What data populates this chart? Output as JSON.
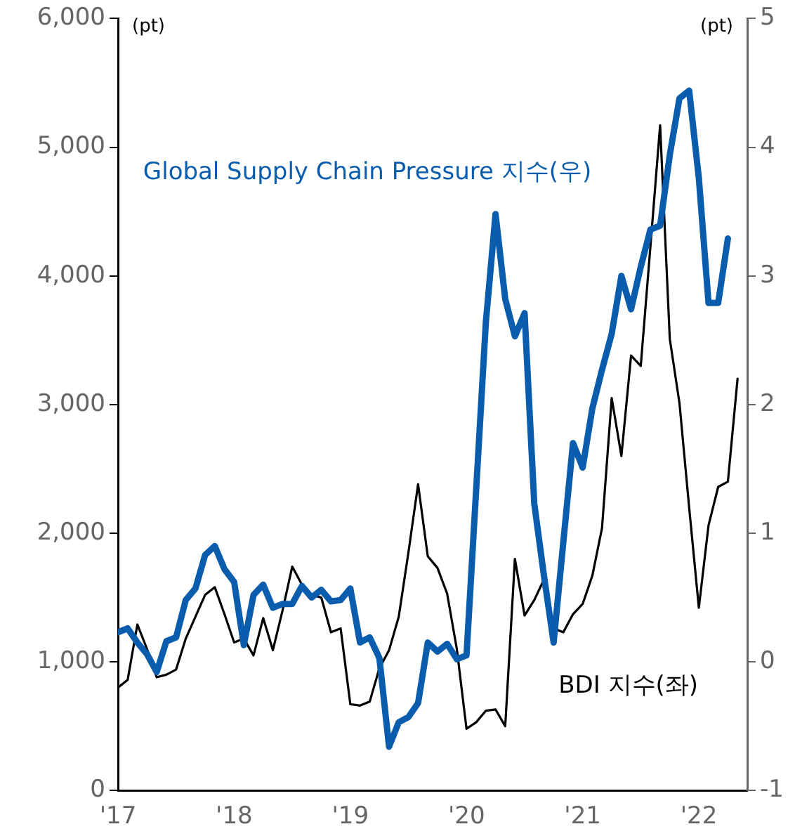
{
  "chart_data": {
    "type": "line",
    "ylabel": "(pt)",
    "y2label": "(pt)",
    "legend": false,
    "grid": false,
    "marker": "none",
    "x": [
      "2017-01",
      "2017-02",
      "2017-03",
      "2017-04",
      "2017-05",
      "2017-06",
      "2017-07",
      "2017-08",
      "2017-09",
      "2017-10",
      "2017-11",
      "2017-12",
      "2018-01",
      "2018-02",
      "2018-03",
      "2018-04",
      "2018-05",
      "2018-06",
      "2018-07",
      "2018-08",
      "2018-09",
      "2018-10",
      "2018-11",
      "2018-12",
      "2019-01",
      "2019-02",
      "2019-03",
      "2019-04",
      "2019-05",
      "2019-06",
      "2019-07",
      "2019-08",
      "2019-09",
      "2019-10",
      "2019-11",
      "2019-12",
      "2020-01",
      "2020-02",
      "2020-03",
      "2020-04",
      "2020-05",
      "2020-06",
      "2020-07",
      "2020-08",
      "2020-09",
      "2020-10",
      "2020-11",
      "2020-12",
      "2021-01",
      "2021-02",
      "2021-03",
      "2021-04",
      "2021-05",
      "2021-06",
      "2021-07",
      "2021-08",
      "2021-09",
      "2021-10",
      "2021-11",
      "2021-12",
      "2022-01",
      "2022-02",
      "2022-03",
      "2022-04",
      "2022-05"
    ],
    "xlim": [
      "2017-01",
      "2022-06"
    ],
    "xticks": [
      {
        "value": "2017-01",
        "label": "'17"
      },
      {
        "value": "2018-01",
        "label": "'18"
      },
      {
        "value": "2019-01",
        "label": "'19"
      },
      {
        "value": "2020-01",
        "label": "'20"
      },
      {
        "value": "2021-01",
        "label": "'21"
      },
      {
        "value": "2022-01",
        "label": "'22"
      }
    ],
    "ylim": [
      0,
      6000
    ],
    "yticks": [
      0,
      {
        "value": 1000,
        "label": "1,000"
      },
      {
        "value": 2000,
        "label": "2,000"
      },
      {
        "value": 3000,
        "label": "3,000"
      },
      {
        "value": 4000,
        "label": "4,000"
      },
      {
        "value": 5000,
        "label": "5,000"
      },
      {
        "value": 6000,
        "label": "6,000"
      }
    ],
    "y2lim": [
      -1,
      5
    ],
    "y2ticks": [
      -1,
      0,
      1,
      2,
      3,
      4,
      5
    ],
    "series": [
      {
        "name": "BDI 지수(좌)",
        "color": "#000000",
        "axis": "y",
        "values": [
          800,
          860,
          1290,
          1100,
          880,
          900,
          940,
          1180,
          1350,
          1520,
          1580,
          1370,
          1150,
          1180,
          1050,
          1340,
          1090,
          1400,
          1740,
          1600,
          1520,
          1500,
          1230,
          1260,
          670,
          660,
          690,
          950,
          1090,
          1350,
          1850,
          2380,
          1820,
          1730,
          1530,
          1100,
          480,
          530,
          620,
          630,
          500,
          1800,
          1360,
          1480,
          1640,
          1260,
          1230,
          1370,
          1450,
          1670,
          2040,
          3050,
          2600,
          3380,
          3300,
          4230,
          5170,
          3510,
          3010,
          2200,
          1420,
          2060,
          2360,
          2400,
          3200
        ]
      },
      {
        "name": "Global Supply Chain Pressure 지수(우)",
        "color": "#0a5cad",
        "axis": "y2",
        "x": [
          "2017-01",
          "2017-02",
          "2017-03",
          "2017-04",
          "2017-05",
          "2017-06",
          "2017-07",
          "2017-08",
          "2017-09",
          "2017-10",
          "2017-11",
          "2017-12",
          "2018-01",
          "2018-02",
          "2018-03",
          "2018-04",
          "2018-05",
          "2018-06",
          "2018-07",
          "2018-08",
          "2018-09",
          "2018-10",
          "2018-11",
          "2018-12",
          "2019-01",
          "2019-02",
          "2019-03",
          "2019-04",
          "2019-05",
          "2019-06",
          "2019-07",
          "2019-08",
          "2019-09",
          "2019-10",
          "2019-11",
          "2019-12",
          "2020-01",
          "2020-02",
          "2020-03",
          "2020-04",
          "2020-05",
          "2020-06",
          "2020-07",
          "2020-08",
          "2020-09",
          "2020-10",
          "2020-11",
          "2020-12",
          "2021-01",
          "2021-02",
          "2021-03",
          "2021-04",
          "2021-05",
          "2021-06",
          "2021-07",
          "2021-08",
          "2021-09",
          "2021-10",
          "2021-11",
          "2021-12",
          "2022-01",
          "2022-02",
          "2022-03",
          "2022-04"
        ],
        "values": [
          0.23,
          0.26,
          0.15,
          0.06,
          -0.08,
          0.16,
          0.19,
          0.48,
          0.57,
          0.83,
          0.9,
          0.72,
          0.62,
          0.13,
          0.52,
          0.6,
          0.42,
          0.45,
          0.45,
          0.59,
          0.5,
          0.56,
          0.47,
          0.48,
          0.57,
          0.15,
          0.19,
          0.03,
          -0.66,
          -0.47,
          -0.43,
          -0.32,
          0.15,
          0.08,
          0.14,
          0.02,
          0.05,
          1.34,
          2.64,
          3.48,
          2.82,
          2.53,
          2.71,
          1.23,
          0.67,
          0.15,
          0.93,
          1.7,
          1.51,
          1.97,
          2.27,
          2.55,
          3.0,
          2.74,
          3.07,
          3.36,
          3.39,
          3.94,
          4.38,
          4.44,
          3.76,
          2.79,
          2.79,
          3.29
        ]
      }
    ]
  }
}
